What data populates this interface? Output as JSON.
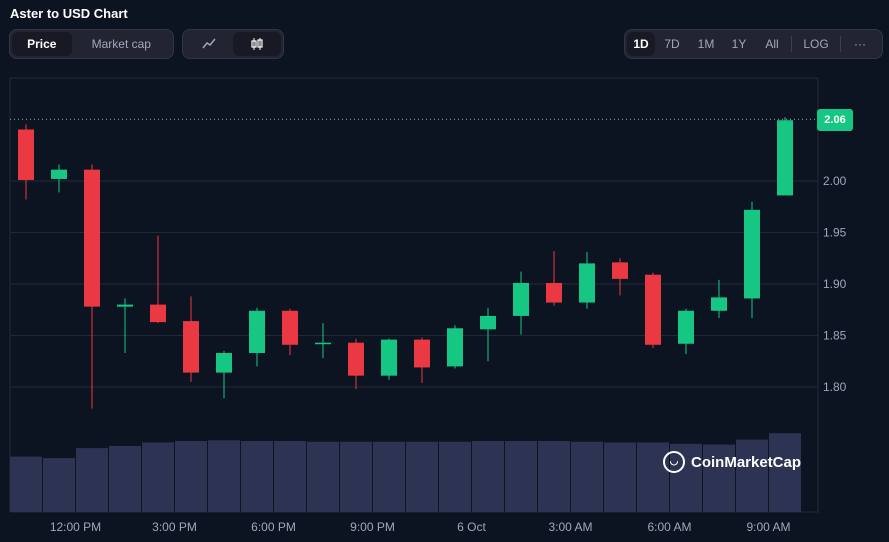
{
  "header": {
    "title": "Aster to USD Chart"
  },
  "toggle": {
    "price": "Price",
    "market_cap": "Market cap"
  },
  "chart_type": {
    "line_icon": "line-chart-icon",
    "candle_icon": "candlestick-icon"
  },
  "range": [
    "1D",
    "7D",
    "1M",
    "1Y",
    "All"
  ],
  "log_label": "LOG",
  "more_label": "···",
  "watermark": "CoinMarketCap",
  "colors": {
    "up": "#16c784",
    "down": "#ea3943",
    "volume": "#2c3353",
    "bg": "#0d1421",
    "grid": "#232838"
  },
  "chart_data": {
    "type": "candlestick",
    "current_price_label": "2.06",
    "current_price": 2.06,
    "ylim": [
      1.735,
      2.09
    ],
    "yticks": [
      1.8,
      1.85,
      1.9,
      1.95,
      2.0
    ],
    "ytick_labels": [
      "1.80",
      "1.85",
      "1.90",
      "1.95",
      "2.00"
    ],
    "xtick_labels": [
      "12:00 PM",
      "3:00 PM",
      "6:00 PM",
      "9:00 PM",
      "6 Oct",
      "3:00 AM",
      "6:00 AM",
      "9:00 AM"
    ],
    "xtick_index": [
      1.5,
      4.5,
      7.5,
      10.5,
      13.5,
      16.5,
      19.5,
      22.5
    ],
    "candles": [
      {
        "o": 2.05,
        "h": 2.055,
        "l": 1.982,
        "c": 2.001
      },
      {
        "o": 2.002,
        "h": 2.016,
        "l": 1.989,
        "c": 2.011
      },
      {
        "o": 2.011,
        "h": 2.016,
        "l": 1.779,
        "c": 1.878
      },
      {
        "o": 1.878,
        "h": 1.886,
        "l": 1.833,
        "c": 1.88
      },
      {
        "o": 1.88,
        "h": 1.947,
        "l": 1.862,
        "c": 1.863
      },
      {
        "o": 1.864,
        "h": 1.888,
        "l": 1.805,
        "c": 1.814
      },
      {
        "o": 1.814,
        "h": 1.835,
        "l": 1.789,
        "c": 1.833
      },
      {
        "o": 1.833,
        "h": 1.877,
        "l": 1.82,
        "c": 1.874
      },
      {
        "o": 1.874,
        "h": 1.876,
        "l": 1.831,
        "c": 1.841
      },
      {
        "o": 1.842,
        "h": 1.862,
        "l": 1.828,
        "c": 1.843
      },
      {
        "o": 1.843,
        "h": 1.847,
        "l": 1.798,
        "c": 1.811
      },
      {
        "o": 1.811,
        "h": 1.847,
        "l": 1.807,
        "c": 1.846
      },
      {
        "o": 1.846,
        "h": 1.848,
        "l": 1.804,
        "c": 1.819
      },
      {
        "o": 1.82,
        "h": 1.86,
        "l": 1.818,
        "c": 1.857
      },
      {
        "o": 1.856,
        "h": 1.877,
        "l": 1.825,
        "c": 1.869
      },
      {
        "o": 1.869,
        "h": 1.912,
        "l": 1.851,
        "c": 1.901
      },
      {
        "o": 1.901,
        "h": 1.932,
        "l": 1.879,
        "c": 1.882
      },
      {
        "o": 1.882,
        "h": 1.931,
        "l": 1.876,
        "c": 1.92
      },
      {
        "o": 1.921,
        "h": 1.925,
        "l": 1.889,
        "c": 1.905
      },
      {
        "o": 1.909,
        "h": 1.911,
        "l": 1.838,
        "c": 1.841
      },
      {
        "o": 1.842,
        "h": 1.876,
        "l": 1.832,
        "c": 1.874
      },
      {
        "o": 1.874,
        "h": 1.904,
        "l": 1.867,
        "c": 1.887
      },
      {
        "o": 1.886,
        "h": 1.98,
        "l": 1.867,
        "c": 1.972
      },
      {
        "o": 1.986,
        "h": 2.062,
        "l": 1.986,
        "c": 2.059
      }
    ],
    "volume_relative": [
      0.78,
      0.76,
      0.9,
      0.93,
      0.98,
      1.0,
      1.01,
      1.0,
      1.0,
      0.99,
      0.99,
      0.99,
      0.99,
      0.99,
      1.0,
      1.0,
      1.0,
      0.99,
      0.98,
      0.98,
      0.96,
      0.95,
      1.02,
      1.11
    ]
  }
}
